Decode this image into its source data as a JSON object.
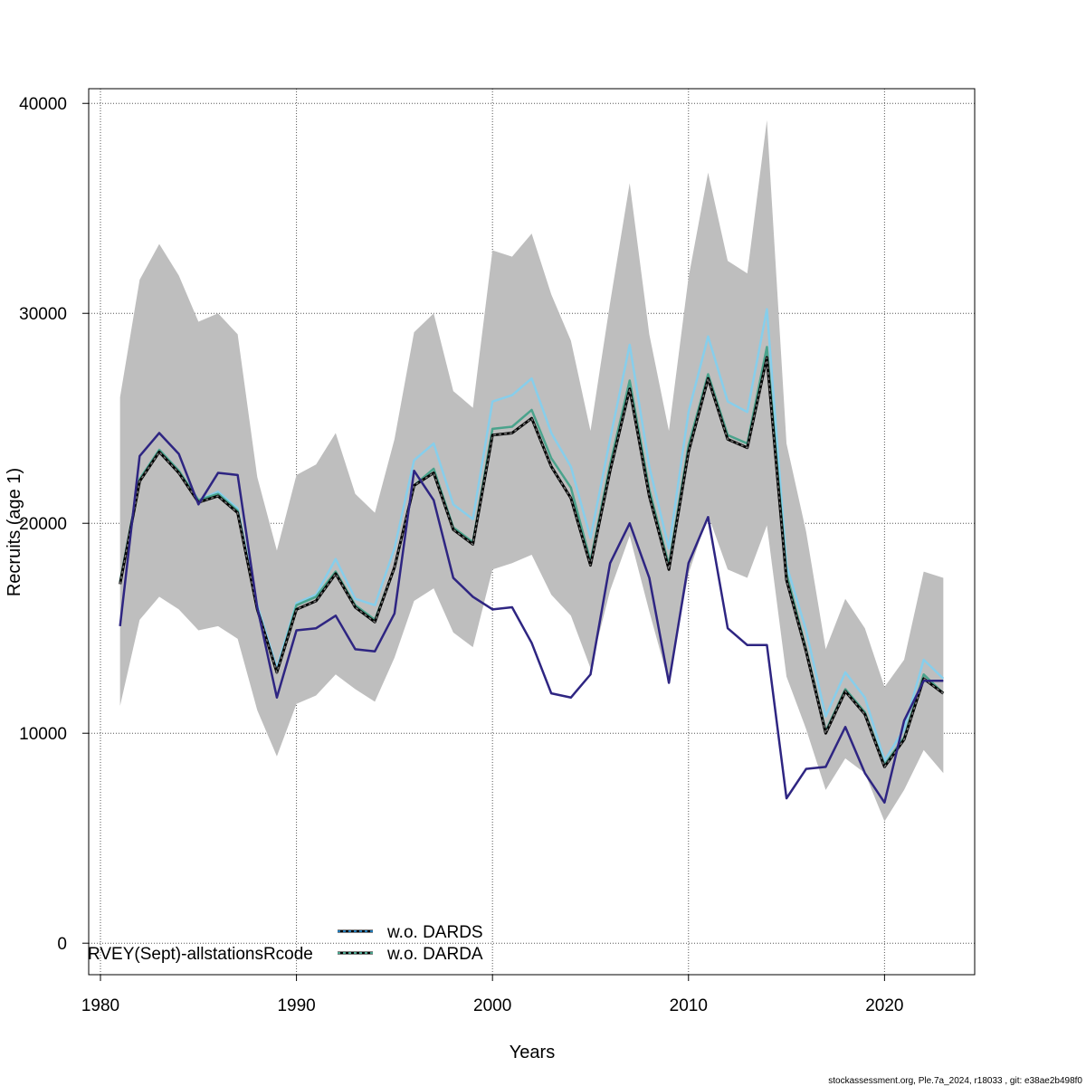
{
  "chart_data": {
    "type": "line",
    "title": "",
    "xlabel": "Years",
    "ylabel": "Recruits (age 1)",
    "xlim": [
      1979.4,
      2024.6
    ],
    "ylim": [
      -1500,
      40700
    ],
    "xticks": [
      1980,
      1990,
      2000,
      2010,
      2020
    ],
    "yticks": [
      0,
      10000,
      20000,
      30000,
      40000
    ],
    "grid": true,
    "x": [
      1981,
      1982,
      1983,
      1984,
      1985,
      1986,
      1987,
      1988,
      1989,
      1990,
      1991,
      1992,
      1993,
      1994,
      1995,
      1996,
      1997,
      1998,
      1999,
      2000,
      2001,
      2002,
      2003,
      2004,
      2005,
      2006,
      2007,
      2008,
      2009,
      2010,
      2011,
      2012,
      2013,
      2014,
      2015,
      2016,
      2017,
      2018,
      2019,
      2020,
      2021,
      2022,
      2023
    ],
    "band": {
      "color": "#bebebe",
      "upper": [
        26000,
        31600,
        33300,
        31800,
        29600,
        30000,
        29000,
        22200,
        18700,
        22300,
        22800,
        24300,
        21400,
        20500,
        24000,
        29100,
        30000,
        26300,
        25500,
        33000,
        32700,
        33800,
        30900,
        28700,
        24400,
        30500,
        36200,
        29000,
        24400,
        31700,
        36700,
        32500,
        31900,
        39200,
        23800,
        19600,
        14000,
        16400,
        15000,
        12200,
        13500,
        17700,
        17400
      ],
      "lower": [
        11300,
        15400,
        16500,
        15900,
        14900,
        15100,
        14500,
        11100,
        8900,
        11400,
        11800,
        12800,
        12100,
        11500,
        13600,
        16300,
        16900,
        14800,
        14100,
        17800,
        18100,
        18500,
        16600,
        15600,
        13100,
        16800,
        19400,
        15800,
        12400,
        17600,
        20400,
        17800,
        17400,
        19900,
        12700,
        10200,
        7300,
        8800,
        8100,
        5800,
        7300,
        9200,
        8100
      ]
    },
    "series": [
      {
        "color": "#87ceeb",
        "values": [
          17200,
          22100,
          23500,
          22500,
          21100,
          21500,
          20700,
          16100,
          13100,
          16200,
          16600,
          18300,
          16400,
          16100,
          18800,
          23000,
          23800,
          20900,
          20200,
          25800,
          26100,
          26900,
          24300,
          22700,
          19300,
          24000,
          28500,
          22700,
          18800,
          25300,
          28900,
          25800,
          25300,
          30200,
          18000,
          14900,
          10800,
          12900,
          11700,
          8700,
          10200,
          13500,
          12600
        ]
      },
      {
        "color": "#4aa38c",
        "values": [
          17200,
          22100,
          23500,
          22500,
          21100,
          21400,
          20600,
          15900,
          12900,
          16100,
          16500,
          17700,
          16100,
          15400,
          17900,
          21800,
          22600,
          19800,
          19100,
          24500,
          24600,
          25400,
          23100,
          21700,
          18200,
          22800,
          26800,
          21600,
          18000,
          23700,
          27100,
          24200,
          23800,
          28400,
          17600,
          14000,
          10100,
          12100,
          11000,
          8500,
          9800,
          12800,
          11900
        ]
      },
      {
        "color": "#000000",
        "dashed": true,
        "values": [
          17100,
          22000,
          23400,
          22400,
          21000,
          21300,
          20500,
          15900,
          12900,
          15900,
          16300,
          17600,
          16000,
          15300,
          17900,
          21800,
          22400,
          19700,
          19000,
          24200,
          24300,
          25000,
          22700,
          21200,
          18000,
          22500,
          26400,
          21300,
          17800,
          23400,
          26900,
          24000,
          23600,
          27900,
          17300,
          13900,
          10000,
          12000,
          10900,
          8400,
          9700,
          12600,
          11900
        ]
      },
      {
        "color": "#2e2582",
        "values": [
          15100,
          23200,
          24300,
          23300,
          20900,
          22400,
          22300,
          16000,
          11700,
          14900,
          15000,
          15600,
          14000,
          13900,
          15700,
          22500,
          21100,
          17400,
          16500,
          15900,
          16000,
          14300,
          11900,
          11700,
          12800,
          18100,
          20000,
          17400,
          12400,
          18100,
          20300,
          15000,
          14200,
          14200,
          6900,
          8300,
          8400,
          10300,
          8100,
          6700,
          10600,
          12500,
          12500
        ]
      }
    ],
    "legend": {
      "position": "bottom-center",
      "entries": [
        {
          "label": "w.o. DARDS",
          "color": "#1f77b4",
          "background": "#000000",
          "dashed": true
        },
        {
          "label": "w.o. DARDA",
          "color": "#4aa38c",
          "background": "#000000",
          "dashed": true
        }
      ]
    },
    "annotations": {
      "inset_label": "RVEY(Sept)-allstationsRcode"
    }
  },
  "footer": "stockassessment.org, Ple.7a_2024, r18033 , git: e38ae2b498f0"
}
